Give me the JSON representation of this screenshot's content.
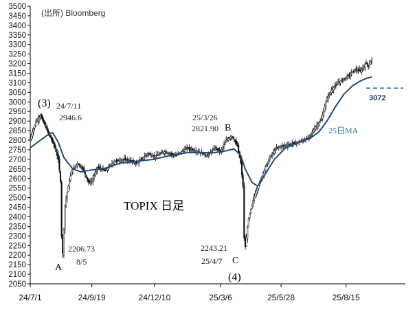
{
  "chart_data": {
    "type": "line",
    "title": "TOPIX 日足",
    "source": "(出所) Bloomberg",
    "y_axis": {
      "min": 2050,
      "max": 3500,
      "step": 50,
      "tick_labels": [
        "2050",
        "2100",
        "2150",
        "2200",
        "2250",
        "2300",
        "2350",
        "2400",
        "2450",
        "2500",
        "2550",
        "2600",
        "2650",
        "2700",
        "2750",
        "2800",
        "2850",
        "2900",
        "2950",
        "3000",
        "3050",
        "3100",
        "3150",
        "3200",
        "3250",
        "3300",
        "3350",
        "3400",
        "3450",
        "3500"
      ]
    },
    "x_axis": {
      "tick_labels": [
        "24/7/1",
        "24/9/19",
        "24/12/10",
        "25/3/6",
        "25/5/28",
        "25/8/15"
      ],
      "tick_day_index": [
        0,
        55,
        111,
        170,
        224,
        282
      ]
    },
    "series": [
      {
        "name": "TOPIX daily",
        "style": "candlestick-approx",
        "points": [
          [
            0,
            2810
          ],
          [
            5,
            2895
          ],
          [
            9,
            2930
          ],
          [
            13,
            2880
          ],
          [
            17,
            2825
          ],
          [
            21,
            2780
          ],
          [
            25,
            2700
          ],
          [
            27,
            2585
          ],
          [
            28,
            2300
          ],
          [
            29,
            2206.73
          ],
          [
            31,
            2460
          ],
          [
            34,
            2560
          ],
          [
            37,
            2640
          ],
          [
            42,
            2680
          ],
          [
            47,
            2650
          ],
          [
            52,
            2580
          ],
          [
            55,
            2585
          ],
          [
            60,
            2660
          ],
          [
            67,
            2640
          ],
          [
            75,
            2690
          ],
          [
            85,
            2700
          ],
          [
            95,
            2680
          ],
          [
            105,
            2730
          ],
          [
            111,
            2715
          ],
          [
            120,
            2740
          ],
          [
            130,
            2720
          ],
          [
            140,
            2760
          ],
          [
            150,
            2740
          ],
          [
            158,
            2720
          ],
          [
            165,
            2760
          ],
          [
            170,
            2740
          ],
          [
            175,
            2800
          ],
          [
            180,
            2821.9
          ],
          [
            185,
            2770
          ],
          [
            188,
            2680
          ],
          [
            190,
            2560
          ],
          [
            191,
            2290
          ],
          [
            192,
            2243.21
          ],
          [
            195,
            2390
          ],
          [
            200,
            2510
          ],
          [
            205,
            2580
          ],
          [
            210,
            2660
          ],
          [
            215,
            2720
          ],
          [
            220,
            2760
          ],
          [
            225,
            2770
          ],
          [
            230,
            2775
          ],
          [
            240,
            2790
          ],
          [
            248,
            2810
          ],
          [
            255,
            2870
          ],
          [
            260,
            2910
          ],
          [
            265,
            3020
          ],
          [
            270,
            3070
          ],
          [
            275,
            3100
          ],
          [
            280,
            3120
          ],
          [
            285,
            3140
          ],
          [
            290,
            3170
          ],
          [
            295,
            3160
          ],
          [
            300,
            3205
          ],
          [
            302,
            3185
          ],
          [
            305,
            3225
          ]
        ]
      },
      {
        "name": "25日MA",
        "style": "line",
        "color": "#1f497d",
        "points": [
          [
            0,
            2760
          ],
          [
            8,
            2795
          ],
          [
            15,
            2825
          ],
          [
            20,
            2840
          ],
          [
            25,
            2790
          ],
          [
            30,
            2710
          ],
          [
            38,
            2650
          ],
          [
            45,
            2635
          ],
          [
            55,
            2645
          ],
          [
            65,
            2650
          ],
          [
            80,
            2680
          ],
          [
            95,
            2690
          ],
          [
            110,
            2700
          ],
          [
            125,
            2720
          ],
          [
            140,
            2735
          ],
          [
            155,
            2735
          ],
          [
            165,
            2735
          ],
          [
            175,
            2745
          ],
          [
            182,
            2755
          ],
          [
            188,
            2720
          ],
          [
            192,
            2650
          ],
          [
            198,
            2580
          ],
          [
            203,
            2560
          ],
          [
            210,
            2625
          ],
          [
            218,
            2700
          ],
          [
            228,
            2760
          ],
          [
            240,
            2790
          ],
          [
            250,
            2810
          ],
          [
            258,
            2845
          ],
          [
            265,
            2900
          ],
          [
            272,
            2970
          ],
          [
            280,
            3040
          ],
          [
            288,
            3085
          ],
          [
            295,
            3110
          ],
          [
            301,
            3125
          ],
          [
            305,
            3130
          ]
        ]
      }
    ],
    "reference_line": {
      "value": 3072,
      "label": "3072",
      "style": "dashed",
      "color": "#2e75b6"
    },
    "annotations": {
      "a_paren": "(3)",
      "a_date": "24/7/11",
      "a_value": "2946.6",
      "b_date": "25/3/26",
      "b_value": "2821.90",
      "b_letter": "B",
      "a_low_value": "2206.73",
      "a_low_date": "8/5",
      "a_letter": "A",
      "c_value": "2243.21",
      "c_date": "25/4/7",
      "c_letter": "C",
      "c_paren": "(4)",
      "ma_label": "25日MA"
    }
  }
}
